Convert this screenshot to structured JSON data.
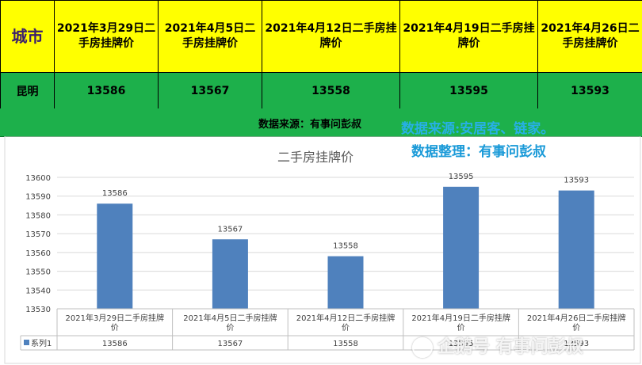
{
  "table": {
    "city_header": "城市",
    "columns": [
      "2021年3月29日二手房挂牌价",
      "2021年4月5日二手房挂牌价",
      "2021年4月12日二手房挂牌价",
      "2021年4月19日二手房挂牌价",
      "2021年4月26日二手房挂牌价"
    ],
    "city": "昆明",
    "values": [
      "13586",
      "13567",
      "13558",
      "13595",
      "13593"
    ]
  },
  "source_text": "数据来源：有事问彭叔",
  "overlay": {
    "line1": "数据来源:安居客、链家。",
    "line2": "数据整理：有事问彭叔"
  },
  "watermark": "企鹅号 有事问彭叔",
  "colors": {
    "header_yellow": "#ffff00",
    "row_green": "#1db04b",
    "bar_blue": "#4f81bd"
  },
  "chart_data": {
    "type": "bar",
    "title": "二手房挂牌价",
    "categories": [
      "2021年3月29日二手房挂牌价",
      "2021年4月5日二手房挂牌价",
      "2021年4月12日二手房挂牌价",
      "2021年4月19日二手房挂牌价",
      "2021年4月26日二手房挂牌价"
    ],
    "series": [
      {
        "name": "系列1",
        "values": [
          13586,
          13567,
          13558,
          13595,
          13593
        ]
      }
    ],
    "ylim": [
      13530,
      13600
    ],
    "yticks": [
      13530,
      13540,
      13550,
      13560,
      13570,
      13580,
      13590,
      13600
    ],
    "grid": true,
    "data_table": true
  }
}
